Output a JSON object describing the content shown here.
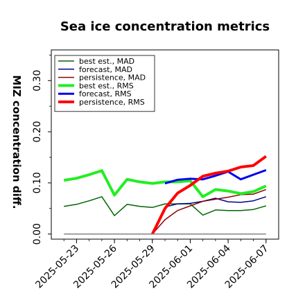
{
  "chart_data": {
    "type": "line",
    "title": "Sea ice concentration metrics",
    "xlabel": "",
    "ylabel": "MIZ concentration diff.",
    "ylim": [
      -0.01,
      0.36
    ],
    "xlim": [
      "2025-05-21",
      "2025-06-08"
    ],
    "grid": false,
    "legend_position": "top-left",
    "y_ticks": [
      {
        "value": 0.0,
        "label": "0.00"
      },
      {
        "value": 0.1,
        "label": "0.10"
      },
      {
        "value": 0.2,
        "label": "0.20"
      },
      {
        "value": 0.3,
        "label": "0.30"
      }
    ],
    "x_ticks": [
      {
        "date": "2025-05-23",
        "label": "2025-05-23",
        "color": "#000000"
      },
      {
        "date": "2025-05-26",
        "label": "2025-05-26",
        "color": "#000000"
      },
      {
        "date": "2025-05-29",
        "label": "2025-05-29",
        "color": "#228b22"
      },
      {
        "date": "2025-06-01",
        "label": "2025-06-01",
        "color": "#000000"
      },
      {
        "date": "2025-06-04",
        "label": "2025-06-04",
        "color": "#000000"
      },
      {
        "date": "2025-06-07",
        "label": "2025-06-07",
        "color": "#000000"
      }
    ],
    "series": [
      {
        "name": "best est., MAD",
        "color": "#006400",
        "width": 1.5,
        "x": [
          "2025-05-22",
          "2025-05-23",
          "2025-05-24",
          "2025-05-25",
          "2025-05-26",
          "2025-05-27",
          "2025-05-28",
          "2025-05-29",
          "2025-05-30",
          "2025-05-31",
          "2025-06-01",
          "2025-06-02",
          "2025-06-03",
          "2025-06-04",
          "2025-06-05",
          "2025-06-06",
          "2025-06-07"
        ],
        "y": [
          0.054,
          0.058,
          0.065,
          0.073,
          0.036,
          0.058,
          0.054,
          0.052,
          0.059,
          0.059,
          0.059,
          0.037,
          0.047,
          0.046,
          0.046,
          0.048,
          0.055
        ]
      },
      {
        "name": "forecast,  MAD",
        "color": "#00008b",
        "width": 1.5,
        "x": [
          "2025-05-30",
          "2025-05-31",
          "2025-06-01",
          "2025-06-02",
          "2025-06-03",
          "2025-06-04",
          "2025-06-05",
          "2025-06-06",
          "2025-06-07"
        ],
        "y": [
          0.053,
          0.059,
          0.06,
          0.064,
          0.07,
          0.063,
          0.062,
          0.065,
          0.073
        ]
      },
      {
        "name": "persistence, MAD",
        "color": "#8b0000",
        "width": 1.5,
        "x": [
          "2025-05-29",
          "2025-05-30",
          "2025-05-31",
          "2025-06-01",
          "2025-06-02",
          "2025-06-03",
          "2025-06-04",
          "2025-06-05",
          "2025-06-06",
          "2025-06-07"
        ],
        "y": [
          0.0,
          0.028,
          0.046,
          0.055,
          0.064,
          0.068,
          0.072,
          0.077,
          0.078,
          0.087
        ]
      },
      {
        "name": "best est., RMS",
        "color": "#22ee22",
        "width": 4,
        "x": [
          "2025-05-22",
          "2025-05-23",
          "2025-05-24",
          "2025-05-25",
          "2025-05-26",
          "2025-05-27",
          "2025-05-28",
          "2025-05-29",
          "2025-05-30",
          "2025-05-31",
          "2025-06-01",
          "2025-06-02",
          "2025-06-03",
          "2025-06-04",
          "2025-06-05",
          "2025-06-06",
          "2025-06-07"
        ],
        "y": [
          0.105,
          0.109,
          0.116,
          0.124,
          0.076,
          0.107,
          0.102,
          0.099,
          0.102,
          0.102,
          0.104,
          0.073,
          0.087,
          0.084,
          0.079,
          0.083,
          0.094
        ]
      },
      {
        "name": "forecast,  RMS",
        "color": "#0000ee",
        "width": 3,
        "x": [
          "2025-05-30",
          "2025-05-31",
          "2025-06-01",
          "2025-06-02",
          "2025-06-03",
          "2025-06-04",
          "2025-06-05",
          "2025-06-06",
          "2025-06-07"
        ],
        "y": [
          0.099,
          0.106,
          0.108,
          0.107,
          0.114,
          0.122,
          0.107,
          0.116,
          0.125
        ]
      },
      {
        "name": "persistence, RMS",
        "color": "#ff0000",
        "width": 4,
        "x": [
          "2025-05-29",
          "2025-05-30",
          "2025-05-31",
          "2025-06-01",
          "2025-06-02",
          "2025-06-03",
          "2025-06-04",
          "2025-06-05",
          "2025-06-06",
          "2025-06-07"
        ],
        "y": [
          0.0,
          0.05,
          0.08,
          0.095,
          0.113,
          0.119,
          0.123,
          0.131,
          0.134,
          0.152
        ]
      },
      {
        "name": "",
        "color": "#808080",
        "width": 1.5,
        "x": [
          "2025-05-22",
          "2025-06-07"
        ],
        "y": [
          0.0,
          0.0
        ]
      }
    ]
  }
}
